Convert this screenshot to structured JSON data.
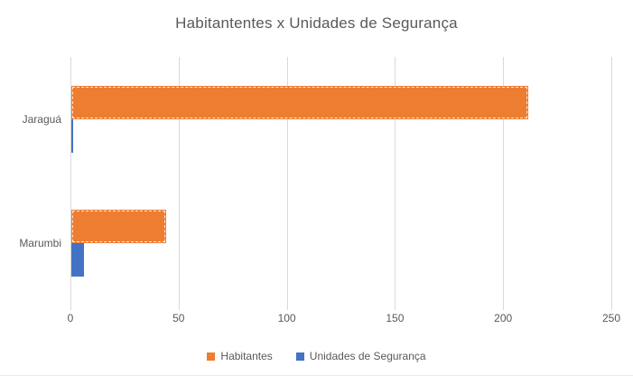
{
  "chart_data": {
    "type": "bar",
    "orientation": "horizontal",
    "title": "Habitantentes x Unidades de Segurança",
    "categories": [
      "Jaraguá",
      "Marumbi"
    ],
    "series": [
      {
        "name": "Habitantes",
        "color": "#ED7D31",
        "values": [
          211,
          44
        ],
        "selected": true
      },
      {
        "name": "Unidades de Segurança",
        "color": "#4472C4",
        "values": [
          1,
          6
        ],
        "selected": false
      }
    ],
    "xlabel": "",
    "ylabel": "",
    "x_axis": {
      "min": 0,
      "max": 250,
      "tick_step": 50,
      "ticks": [
        0,
        50,
        100,
        150,
        200,
        250
      ]
    },
    "grid": true,
    "legend_position": "bottom",
    "colors": {
      "title_text": "#595959",
      "axis_text": "#595959",
      "gridline": "#D9D9D9",
      "background": "#FFFFFF"
    }
  }
}
